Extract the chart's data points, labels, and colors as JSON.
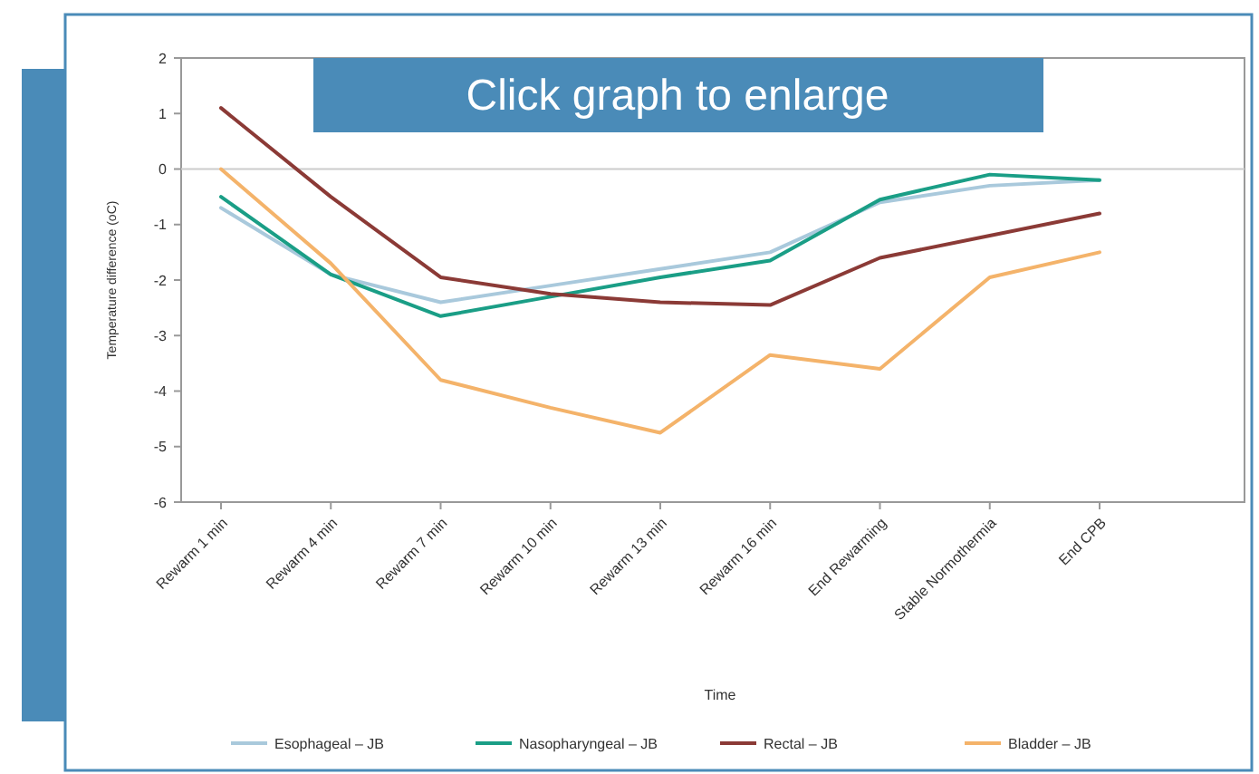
{
  "chart_data": {
    "type": "line",
    "xlabel": "Time",
    "ylabel": "Temperature difference (oC)",
    "categories": [
      "Rewarm 1 min",
      "Rewarm 4 min",
      "Rewarm 7 min",
      "Rewarm 10 min",
      "Rewarm 13 min",
      "Rewarm 16 min",
      "End Rewarming",
      "Stable Normothermia",
      "End CPB"
    ],
    "series": [
      {
        "name": "Esophageal – JB",
        "color": "#a9c9dc",
        "values": [
          -0.7,
          -1.9,
          -2.4,
          -2.1,
          -1.8,
          -1.5,
          -0.6,
          -0.3,
          -0.2
        ]
      },
      {
        "name": "Nasopharyngeal – JB",
        "color": "#1a9e86",
        "values": [
          -0.5,
          -1.9,
          -2.65,
          -2.3,
          -1.95,
          -1.65,
          -0.55,
          -0.1,
          -0.2
        ]
      },
      {
        "name": "Rectal – JB",
        "color": "#8b3a36",
        "values": [
          1.1,
          -0.5,
          -1.95,
          -2.25,
          -2.4,
          -2.45,
          -1.6,
          -1.2,
          -0.8
        ]
      },
      {
        "name": "Bladder – JB",
        "color": "#f4b36a",
        "values": [
          0,
          -1.7,
          -3.8,
          -4.3,
          -4.75,
          -3.35,
          -3.6,
          -1.95,
          -1.5
        ]
      }
    ],
    "ylim": [
      -6,
      2
    ],
    "yticks": [
      -6,
      -5,
      -4,
      -3,
      -2,
      -1,
      0,
      1,
      2
    ],
    "ref_lines": [
      {
        "axis": "y",
        "value": 0,
        "color": "#cccccc"
      }
    ],
    "legend": "bottom",
    "grid": false,
    "annotations": [
      "Click graph to enlarge"
    ]
  }
}
